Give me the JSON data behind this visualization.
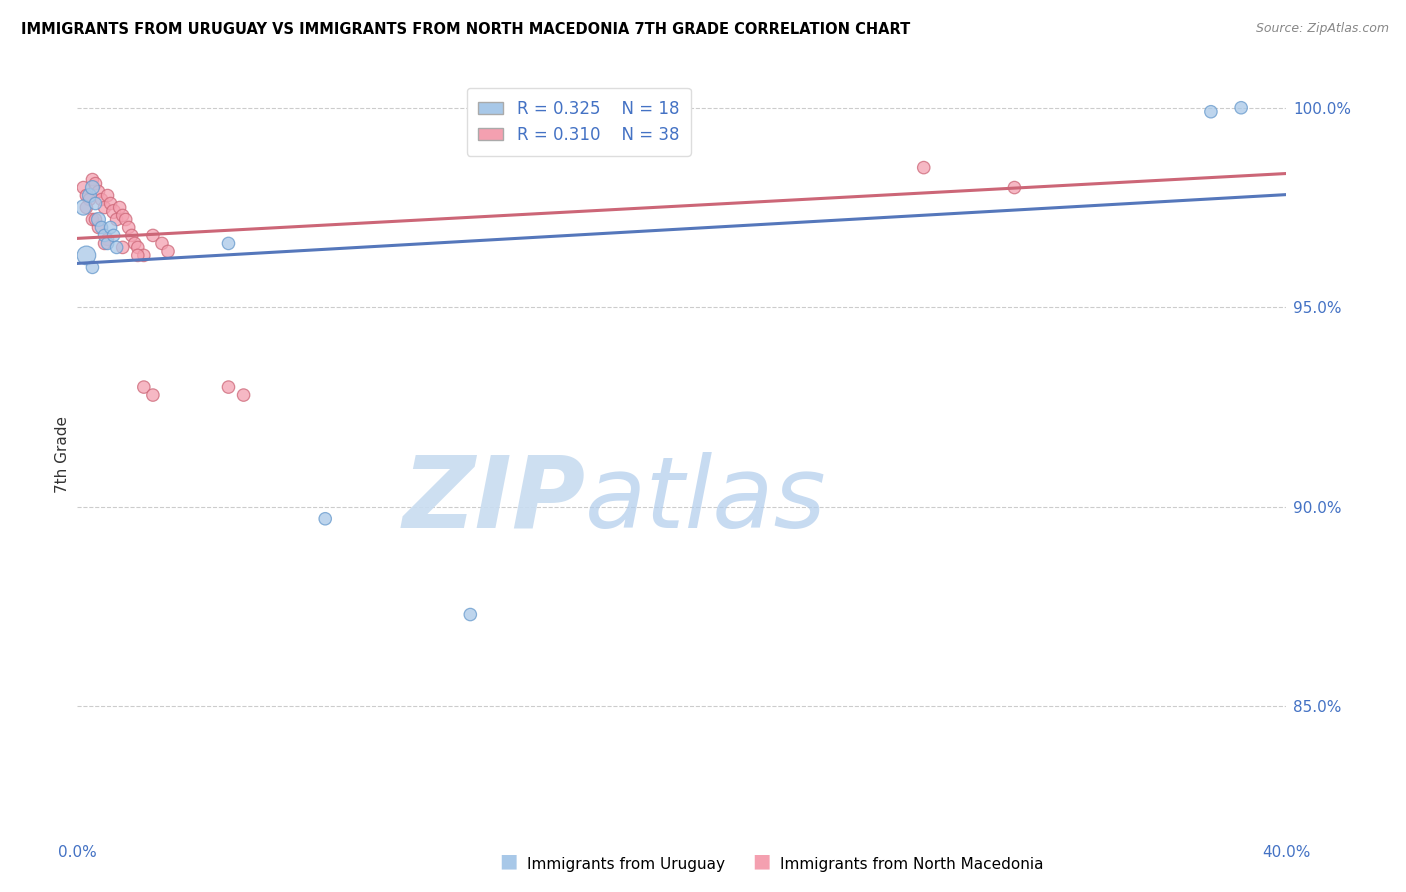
{
  "title": "IMMIGRANTS FROM URUGUAY VS IMMIGRANTS FROM NORTH MACEDONIA 7TH GRADE CORRELATION CHART",
  "source": "Source: ZipAtlas.com",
  "ylabel": "7th Grade",
  "ytick_labels": [
    "100.0%",
    "95.0%",
    "90.0%",
    "85.0%"
  ],
  "ytick_values": [
    1.0,
    0.95,
    0.9,
    0.85
  ],
  "xlim": [
    0.0,
    0.4
  ],
  "ylim": [
    0.818,
    1.008
  ],
  "legend_label1": "Immigrants from Uruguay",
  "legend_label2": "Immigrants from North Macedonia",
  "blue_color": "#A8C8E8",
  "pink_color": "#F4A0B0",
  "blue_edge": "#6699CC",
  "pink_edge": "#CC6677",
  "blue_line": "#5577BB",
  "pink_line": "#CC6677",
  "watermark_text": "ZIPatlas",
  "watermark_color": "#D8EAF5",
  "blue_x": [
    0.002,
    0.004,
    0.005,
    0.006,
    0.007,
    0.008,
    0.009,
    0.01,
    0.011,
    0.012,
    0.013,
    0.003,
    0.005,
    0.05,
    0.375,
    0.385,
    0.082,
    0.13
  ],
  "blue_y": [
    0.975,
    0.978,
    0.98,
    0.976,
    0.972,
    0.97,
    0.968,
    0.966,
    0.97,
    0.968,
    0.965,
    0.963,
    0.96,
    0.966,
    0.999,
    1.0,
    0.897,
    0.873
  ],
  "blue_s": [
    120,
    100,
    100,
    80,
    100,
    80,
    80,
    80,
    80,
    80,
    80,
    180,
    80,
    80,
    80,
    80,
    80,
    80
  ],
  "pink_x": [
    0.002,
    0.003,
    0.004,
    0.005,
    0.006,
    0.007,
    0.008,
    0.009,
    0.01,
    0.011,
    0.012,
    0.013,
    0.014,
    0.015,
    0.016,
    0.017,
    0.018,
    0.019,
    0.02,
    0.022,
    0.025,
    0.028,
    0.03,
    0.003,
    0.005,
    0.007,
    0.01,
    0.015,
    0.02,
    0.022,
    0.025,
    0.05,
    0.055,
    0.28,
    0.31,
    0.15,
    0.006,
    0.009
  ],
  "pink_y": [
    0.98,
    0.978,
    0.977,
    0.982,
    0.981,
    0.979,
    0.977,
    0.975,
    0.978,
    0.976,
    0.974,
    0.972,
    0.975,
    0.973,
    0.972,
    0.97,
    0.968,
    0.966,
    0.965,
    0.963,
    0.968,
    0.966,
    0.964,
    0.975,
    0.972,
    0.97,
    0.967,
    0.965,
    0.963,
    0.93,
    0.928,
    0.93,
    0.928,
    0.985,
    0.98,
    0.998,
    0.972,
    0.966
  ],
  "pink_s": [
    80,
    80,
    80,
    80,
    80,
    80,
    80,
    80,
    80,
    80,
    100,
    80,
    80,
    80,
    80,
    80,
    80,
    80,
    80,
    80,
    80,
    80,
    80,
    80,
    80,
    80,
    80,
    80,
    80,
    80,
    80,
    80,
    80,
    80,
    80,
    80,
    80,
    80
  ]
}
